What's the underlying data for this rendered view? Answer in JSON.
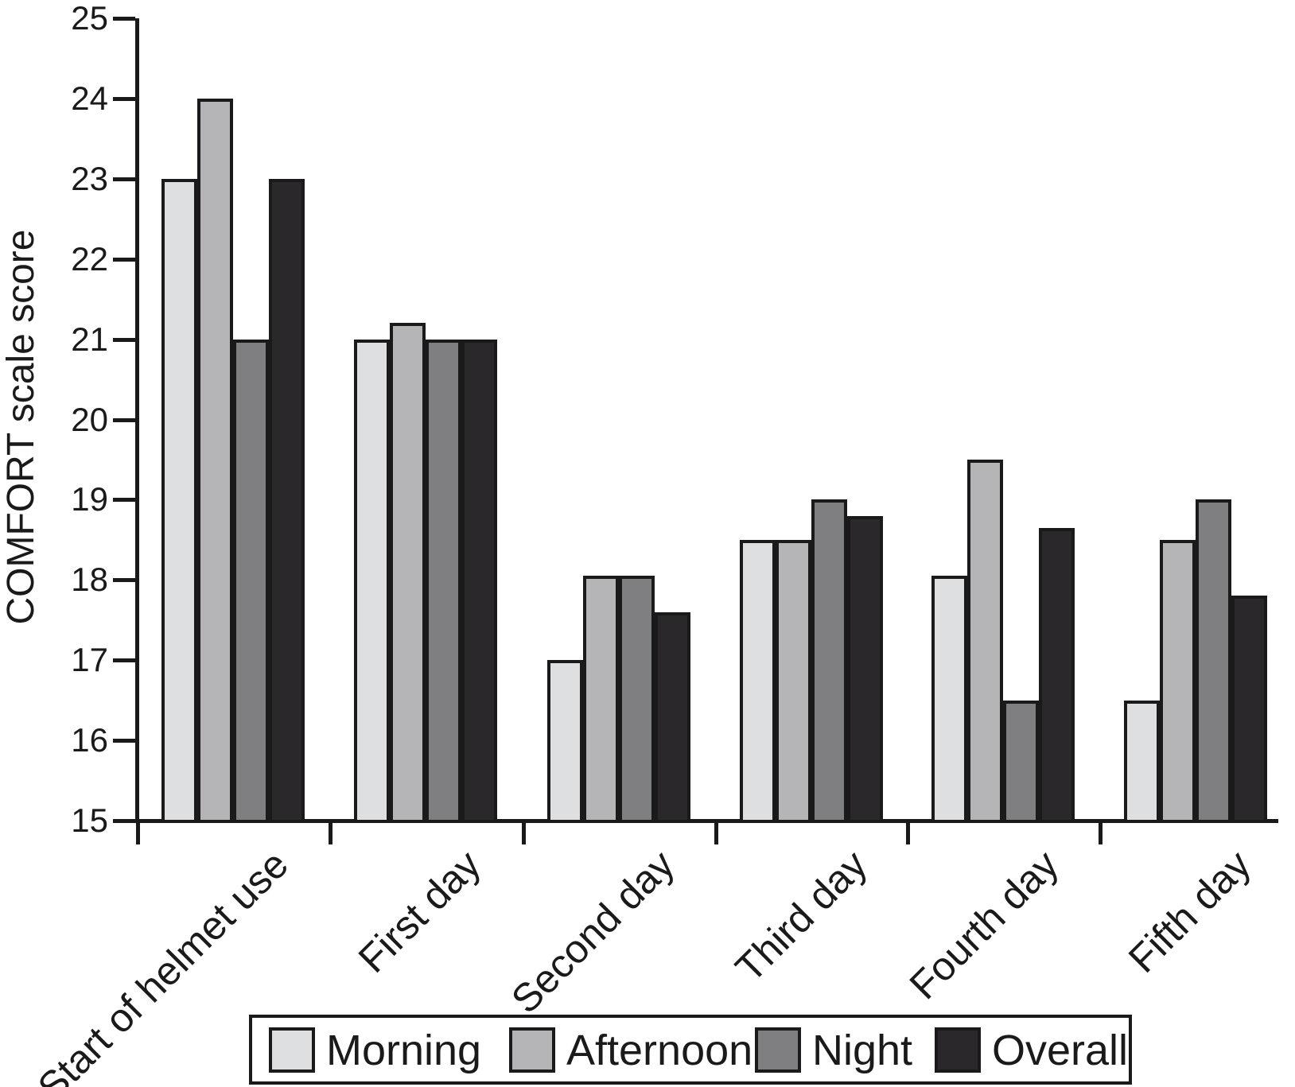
{
  "figure": {
    "background_color": "#ffffff",
    "axis_color": "#1a1a1a",
    "bar_border_color": "#1a1a1a"
  },
  "chart_data": {
    "type": "bar",
    "title": "",
    "xlabel": "",
    "ylabel": "COMFORT scale score",
    "ylim": [
      15,
      25
    ],
    "yticks": [
      15,
      16,
      17,
      18,
      19,
      20,
      21,
      22,
      23,
      24,
      25
    ],
    "grid": false,
    "legend_position": "bottom",
    "categories": [
      "Start of helmet use",
      "First day",
      "Second day",
      "Third day",
      "Fourth day",
      "Fifth day"
    ],
    "series": [
      {
        "name": "Morning",
        "color": "#dedfe1",
        "values": [
          23,
          21,
          17,
          18.5,
          18.05,
          16.5
        ]
      },
      {
        "name": "Afternoon",
        "color": "#b5b5b7",
        "values": [
          24,
          21.2,
          18.05,
          18.5,
          19.5,
          18.5
        ]
      },
      {
        "name": "Night",
        "color": "#7f7f82",
        "values": [
          21,
          21,
          18.05,
          19,
          16.5,
          19
        ]
      },
      {
        "name": "Overall",
        "color": "#2a282a",
        "values": [
          23,
          21,
          17.6,
          18.8,
          18.65,
          17.8
        ]
      }
    ]
  }
}
